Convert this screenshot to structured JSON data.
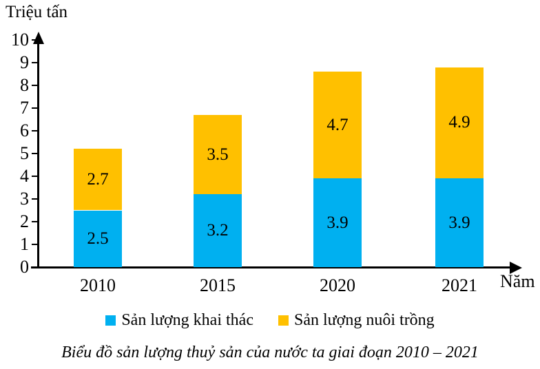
{
  "chart_data": {
    "type": "bar",
    "stacked": true,
    "categories": [
      "2010",
      "2015",
      "2020",
      "2021"
    ],
    "series": [
      {
        "name": "Sản lượng khai thác",
        "color": "#00B0F0",
        "values": [
          2.5,
          3.2,
          3.9,
          3.9
        ]
      },
      {
        "name": "Sản lượng nuôi trồng",
        "color": "#FFC000",
        "values": [
          2.7,
          3.5,
          4.7,
          4.9
        ]
      }
    ],
    "totals": [
      5.2,
      6.7,
      8.6,
      8.8
    ],
    "ylabel": "Triệu tấn",
    "xlabel": "Năm",
    "ylim": [
      0,
      10
    ],
    "yticks": [
      0,
      1,
      2,
      3,
      4,
      5,
      6,
      7,
      8,
      9,
      10
    ],
    "grid": false,
    "legend_position": "bottom",
    "value_labels": "inside-segments",
    "title": "Biểu đồ sản lượng thuỷ sản của nước ta giai đoạn 2010 – 2021"
  }
}
